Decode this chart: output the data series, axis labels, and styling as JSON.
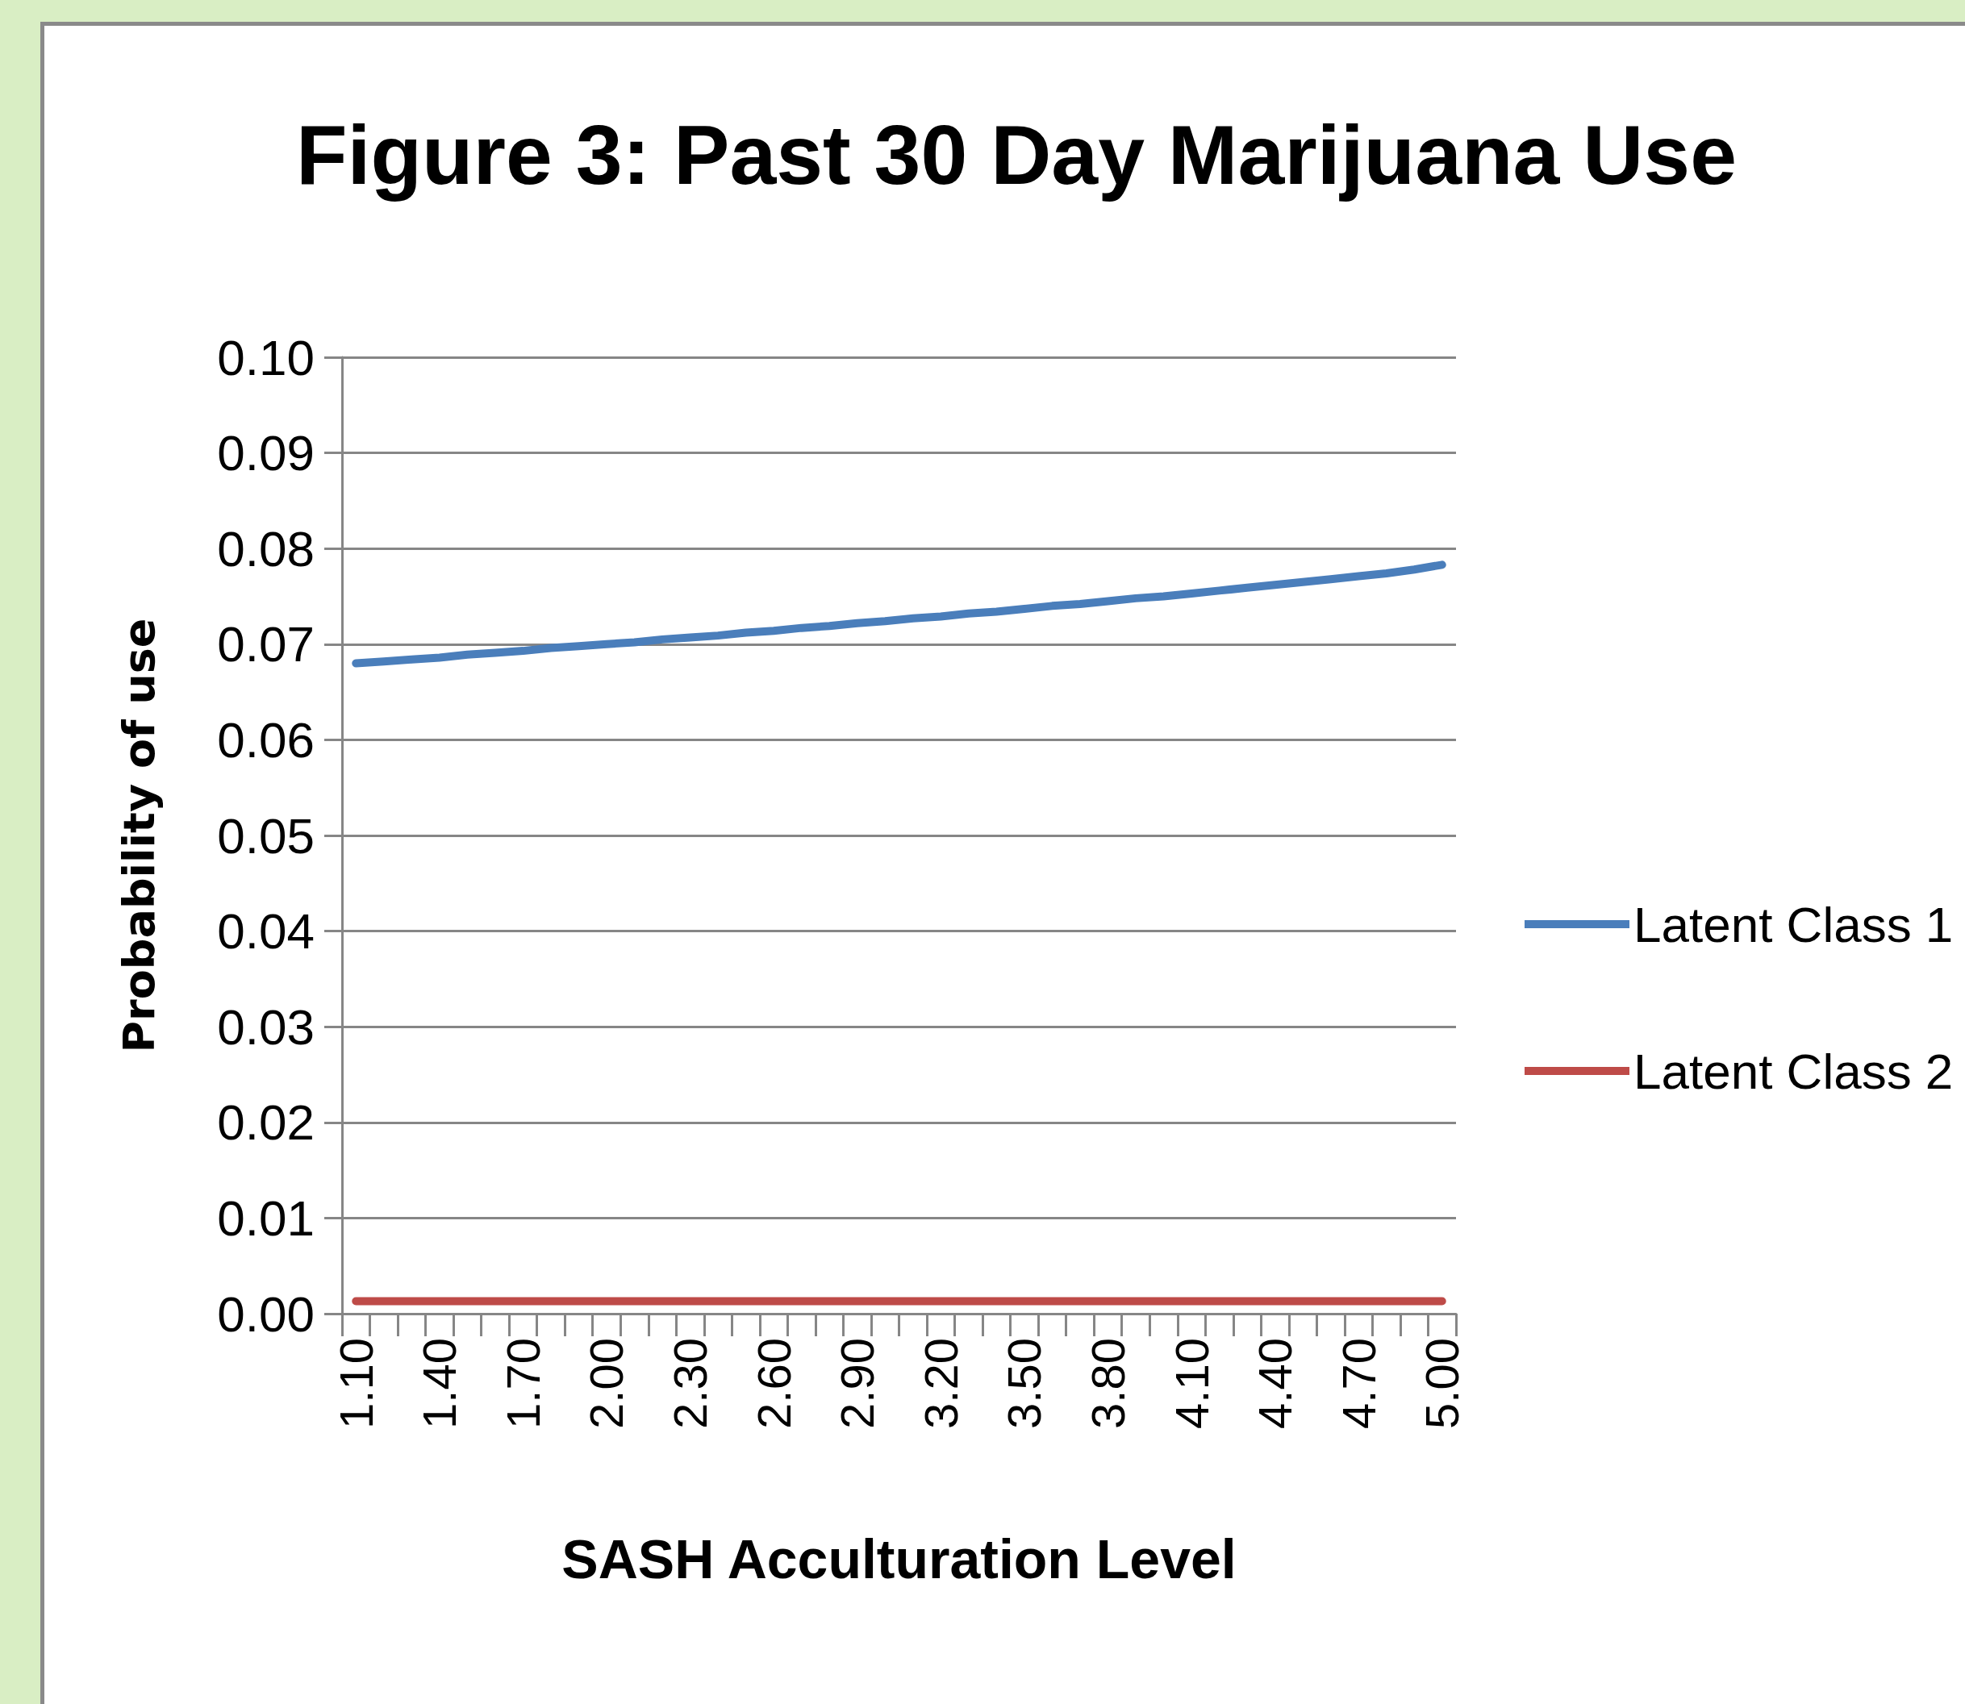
{
  "chart_data": {
    "type": "line",
    "title": "Figure 3: Past 30 Day Marijuana Use",
    "xlabel": "SASH Acculturation Level",
    "ylabel": "Probability of use",
    "categories": [
      "1.10",
      null,
      null,
      "1.40",
      null,
      null,
      "1.70",
      null,
      null,
      "2.00",
      null,
      null,
      "2.30",
      null,
      null,
      "2.60",
      null,
      null,
      "2.90",
      null,
      null,
      "3.20",
      null,
      null,
      "3.50",
      null,
      null,
      "3.80",
      null,
      null,
      "4.10",
      null,
      null,
      "4.40",
      null,
      null,
      "4.70",
      null,
      null,
      "5.00"
    ],
    "series": [
      {
        "name": "Latent Class 1",
        "color": "#4a7ebb",
        "values": [
          0.068,
          0.0682,
          0.0684,
          0.0686,
          0.0689,
          0.0691,
          0.0693,
          0.0696,
          0.0698,
          0.07,
          0.0702,
          0.0705,
          0.0707,
          0.0709,
          0.0712,
          0.0714,
          0.0717,
          0.0719,
          0.0722,
          0.0724,
          0.0727,
          0.0729,
          0.0732,
          0.0734,
          0.0737,
          0.074,
          0.0742,
          0.0745,
          0.0748,
          0.075,
          0.0753,
          0.0756,
          0.0759,
          0.0762,
          0.0765,
          0.0768,
          0.0771,
          0.0774,
          0.0778,
          0.0783
        ]
      },
      {
        "name": "Latent Class 2",
        "color": "#be4b48",
        "values": [
          0.0013,
          0.0013,
          0.0013,
          0.0013,
          0.0013,
          0.0013,
          0.0013,
          0.0013,
          0.0013,
          0.0013,
          0.0013,
          0.0013,
          0.0013,
          0.0013,
          0.0013,
          0.0013,
          0.0013,
          0.0013,
          0.0013,
          0.0013,
          0.0013,
          0.0013,
          0.0013,
          0.0013,
          0.0013,
          0.0013,
          0.0013,
          0.0013,
          0.0013,
          0.0013,
          0.0013,
          0.0013,
          0.0013,
          0.0013,
          0.0013,
          0.0013,
          0.0013,
          0.0013,
          0.0013,
          0.0013
        ]
      }
    ],
    "ylim": [
      0,
      0.1
    ],
    "yticks": [
      {
        "value": 0,
        "label": "0.00"
      },
      {
        "value": 0.01,
        "label": "0.01"
      },
      {
        "value": 0.02,
        "label": "0.02"
      },
      {
        "value": 0.03,
        "label": "0.03"
      },
      {
        "value": 0.04,
        "label": "0.04"
      },
      {
        "value": 0.05,
        "label": "0.05"
      },
      {
        "value": 0.06,
        "label": "0.06"
      },
      {
        "value": 0.07,
        "label": "0.07"
      },
      {
        "value": 0.08,
        "label": "0.08"
      },
      {
        "value": 0.09,
        "label": "0.09"
      },
      {
        "value": 0.1,
        "label": "0.10"
      }
    ],
    "grid": "y",
    "legend": "right",
    "line_style": "solid"
  }
}
